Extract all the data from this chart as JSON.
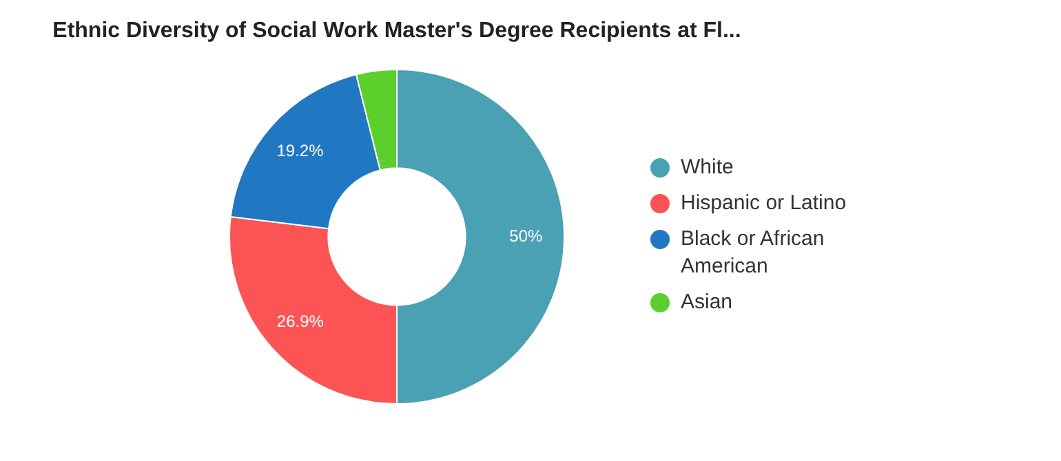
{
  "chart_data": {
    "type": "donut",
    "title": "Ethnic Diversity of Social Work Master's Degree Recipients at Fl...",
    "categories": [
      "White",
      "Hispanic or Latino",
      "Black or African American",
      "Asian"
    ],
    "values": [
      50,
      26.9,
      19.2,
      3.9
    ],
    "colors": [
      "#4aa1b3",
      "#fc5454",
      "#1f78c1",
      "#5ccf2c"
    ],
    "value_labels": [
      "50%",
      "26.9%",
      "19.2%",
      null
    ],
    "legend": "right"
  }
}
